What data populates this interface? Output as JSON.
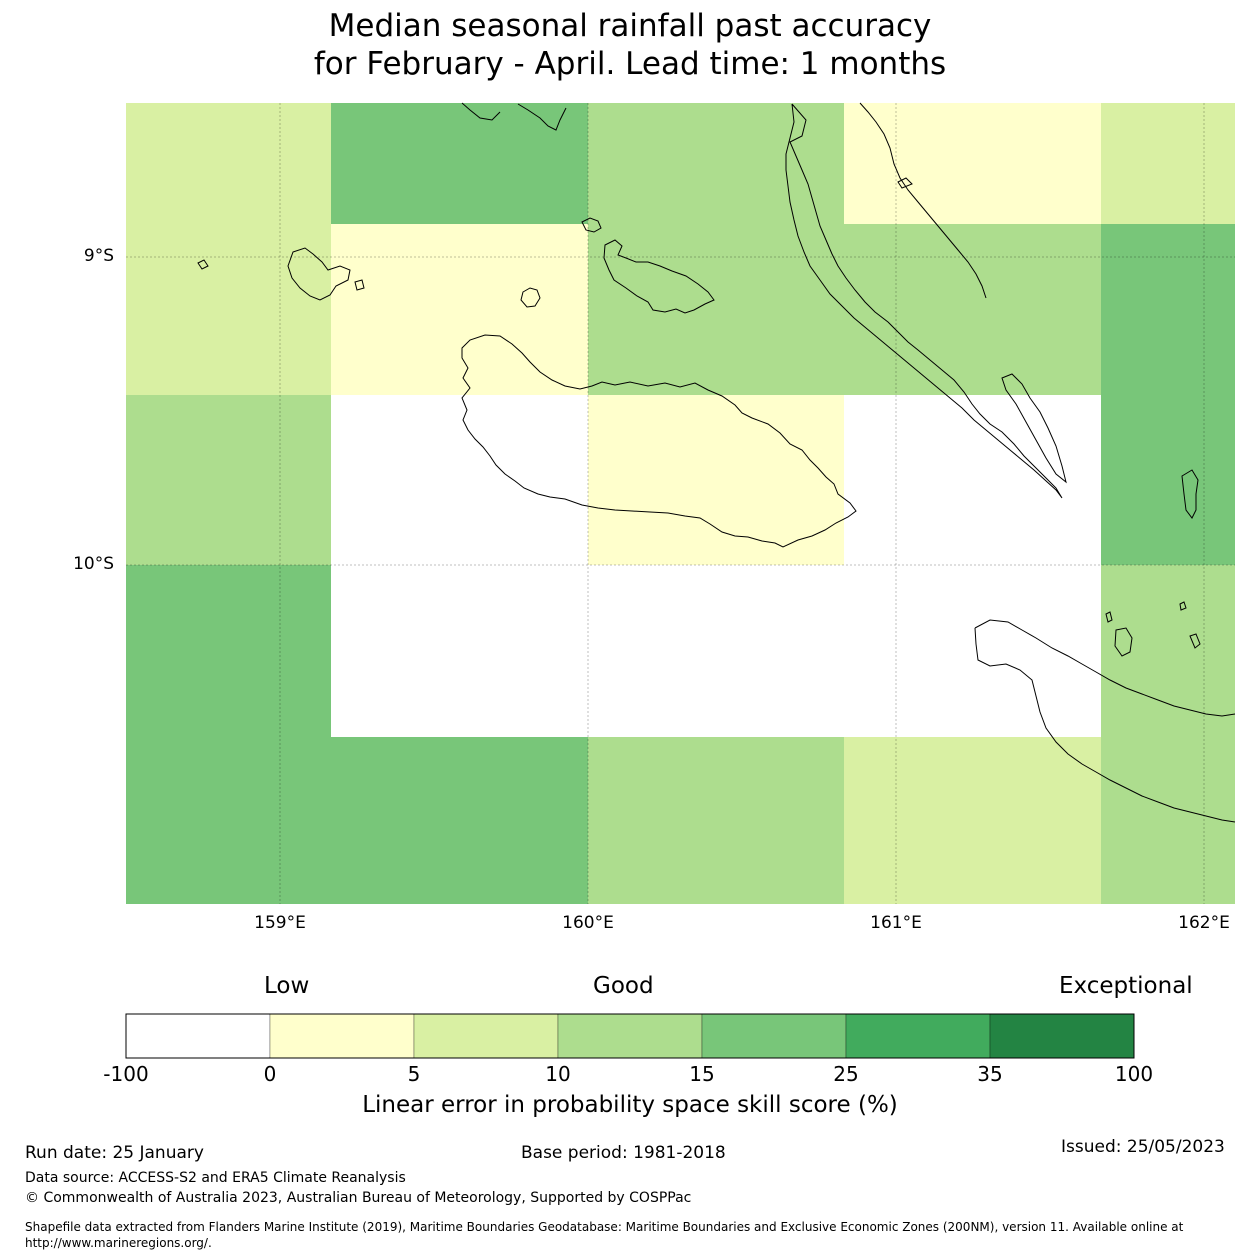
{
  "title": {
    "line1": "Median seasonal rainfall past accuracy",
    "line2": "for February - April. Lead time: 1 months"
  },
  "map": {
    "lat_labels": [
      "9°S",
      "10°S"
    ],
    "lon_labels": [
      "159°E",
      "160°E",
      "161°E",
      "162°E"
    ],
    "cell_colors": [
      [
        "#d9f0a3",
        "#78c679",
        "#addd8e",
        "#ffffcc",
        "#d9f0a3"
      ],
      [
        "#d9f0a3",
        "#ffffcc",
        "#addd8e",
        "#addd8e",
        "#78c679"
      ],
      [
        "#addd8e",
        "#ffffff",
        "#ffffcc",
        "#ffffff",
        "#78c679"
      ],
      [
        "#78c679",
        "#ffffff",
        "#ffffff",
        "#ffffff",
        "#addd8e"
      ],
      [
        "#78c679",
        "#78c679",
        "#addd8e",
        "#d9f0a3",
        "#addd8e"
      ]
    ]
  },
  "colorbar": {
    "words": [
      "Low",
      "Good",
      "Exceptional"
    ],
    "ticks": [
      "-100",
      "0",
      "5",
      "10",
      "15",
      "25",
      "35",
      "100"
    ],
    "colors": [
      "#ffffff",
      "#ffffcc",
      "#d9f0a3",
      "#addd8e",
      "#78c679",
      "#41ab5d",
      "#238443"
    ],
    "label": "Linear error in probability space skill score (%)"
  },
  "footer": {
    "run_date": "Run date: 25 January",
    "base_period": "Base period: 1981-2018",
    "issued": "Issued: 25/05/2023",
    "data_source": "Data source: ACCESS-S2 and ERA5 Climate Reanalysis",
    "copyright": "© Commonwealth of Australia 2023, Australian Bureau of Meteorology, Supported by COSPPac",
    "shapefile_line1": "Shapefile data extracted from Flanders Marine Institute (2019), Maritime Boundaries Geodatabase: Maritime Boundaries and Exclusive Economic Zones (200NM), version 11. Available online at",
    "shapefile_line2": "http://www.marineregions.org/."
  }
}
